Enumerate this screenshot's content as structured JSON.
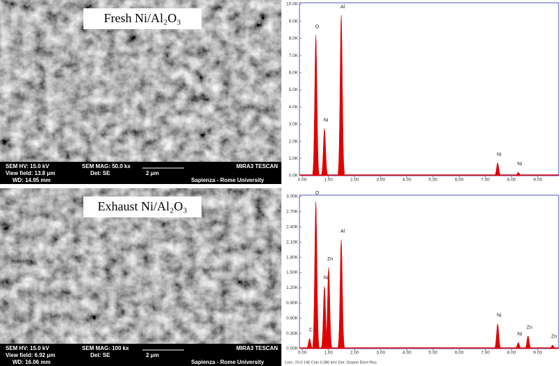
{
  "sem_panels": [
    {
      "title": "Fresh Ni/Al₂O₃",
      "info": [
        "SEM HV: 15.0 kV",
        "SEM MAG: 50.0 kx",
        "MIRA3 TESCAN",
        "View field: 13.8 μm",
        "Det: SE",
        "2 μm",
        "WD: 14.95 mm",
        "Sapienza - Rome University"
      ]
    },
    {
      "title": "Exhaust Ni/Al₂O₃",
      "info": [
        "SEM HV: 15.0 kV",
        "SEM MAG: 100 kx",
        "MIRA3 TESCAN",
        "View field: 6.92 μm",
        "Det: SE",
        "2 μm",
        "WD: 16.06 mm",
        "Sapienza - Rome University"
      ]
    }
  ],
  "chart_data": [
    {
      "type": "spectrum",
      "color": "#e00000",
      "x": [
        0.52,
        0.85,
        1.49,
        7.47,
        8.26
      ],
      "values": [
        8200,
        2750,
        9350,
        750,
        200
      ],
      "peak_labels": [
        "O",
        "Ni",
        "Al",
        "Ni",
        "Ni"
      ],
      "xlim": [
        0,
        9.8
      ],
      "ylim": [
        0,
        10000
      ],
      "xticks": [
        {
          "value": 0,
          "label": "0.00"
        },
        {
          "value": 1,
          "label": "1.00"
        },
        {
          "value": 2,
          "label": "2.00"
        },
        {
          "value": 3,
          "label": "3.00"
        },
        {
          "value": 4,
          "label": "4.00"
        },
        {
          "value": 5,
          "label": "5.00"
        },
        {
          "value": 6,
          "label": "6.00"
        },
        {
          "value": 7,
          "label": "7.00"
        },
        {
          "value": 8,
          "label": "8.00"
        },
        {
          "value": 9,
          "label": "9.00"
        }
      ],
      "yticks": [
        {
          "value": 0,
          "label": "0.0K"
        },
        {
          "value": 1000,
          "label": "1.0K"
        },
        {
          "value": 2000,
          "label": "2.0K"
        },
        {
          "value": 3000,
          "label": "3.0K"
        },
        {
          "value": 4000,
          "label": "4.0K"
        },
        {
          "value": 5000,
          "label": "5.0K"
        },
        {
          "value": 6000,
          "label": "6.0K"
        },
        {
          "value": 7000,
          "label": "7.0K"
        },
        {
          "value": 8000,
          "label": "8.0K"
        },
        {
          "value": 9000,
          "label": "9.0K"
        },
        {
          "value": 10000,
          "label": "10.0K"
        }
      ]
    },
    {
      "type": "spectrum",
      "color": "#e00000",
      "x": [
        0.28,
        0.52,
        0.85,
        1.01,
        1.49,
        7.47,
        8.26,
        8.63,
        9.57
      ],
      "values": [
        200,
        2900,
        1230,
        1600,
        2150,
        490,
        120,
        250,
        70
      ],
      "peak_labels": [
        "C",
        "O",
        "Ni",
        "Zn",
        "Al",
        "Ni",
        "Ni",
        "Zn",
        "Zn"
      ],
      "xlim": [
        0,
        9.8
      ],
      "ylim": [
        0,
        3000
      ],
      "xticks": [
        {
          "value": 0,
          "label": "0.00"
        },
        {
          "value": 1,
          "label": "1.00"
        },
        {
          "value": 2,
          "label": "2.00"
        },
        {
          "value": 3,
          "label": "3.00"
        },
        {
          "value": 4,
          "label": "4.00"
        },
        {
          "value": 5,
          "label": "5.00"
        },
        {
          "value": 6,
          "label": "6.00"
        },
        {
          "value": 7,
          "label": "7.00"
        },
        {
          "value": 8,
          "label": "8.00"
        },
        {
          "value": 9,
          "label": "9.00"
        }
      ],
      "yticks": [
        {
          "value": 0,
          "label": "0.00K"
        },
        {
          "value": 300,
          "label": "0.30K"
        },
        {
          "value": 600,
          "label": "0.60K"
        },
        {
          "value": 900,
          "label": "0.90K"
        },
        {
          "value": 1200,
          "label": "1.20K"
        },
        {
          "value": 1500,
          "label": "1.50K"
        },
        {
          "value": 1800,
          "label": "1.80K"
        },
        {
          "value": 2100,
          "label": "2.10K"
        },
        {
          "value": 2400,
          "label": "2.40K"
        },
        {
          "value": 2700,
          "label": "2.70K"
        },
        {
          "value": 3000,
          "label": "3.00K"
        }
      ],
      "footer": "Lsec: 20.0     145 Cnts     0.380 keV     Det: Octane Elect Plus"
    }
  ]
}
